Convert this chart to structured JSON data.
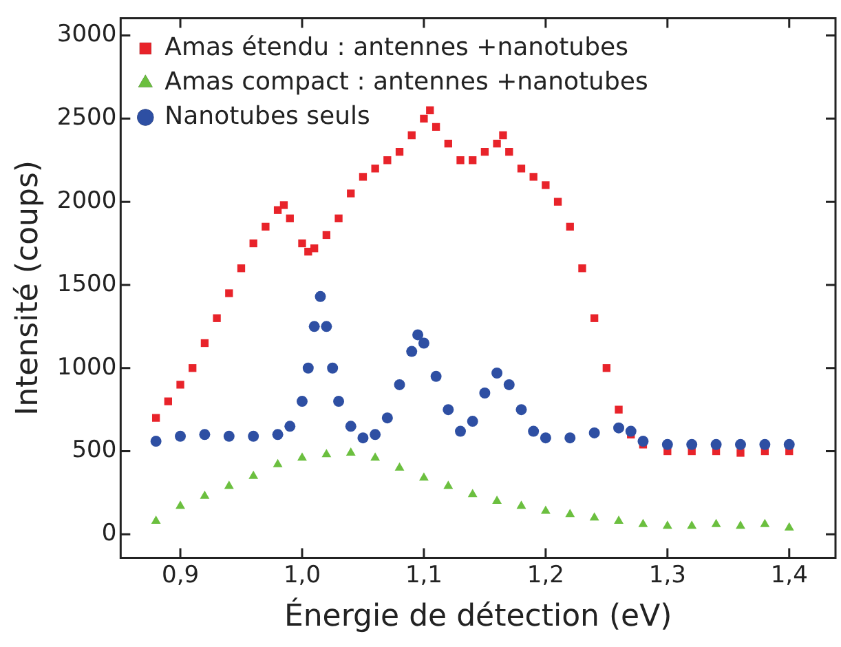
{
  "chart_data": {
    "type": "scatter",
    "xlabel": "Énergie de détection (eV)",
    "ylabel": "Intensité (coups)",
    "xlim": [
      0.851,
      1.438
    ],
    "ylim": [
      -141,
      3104
    ],
    "xticks": [
      {
        "value": 0.9,
        "label": "0,9"
      },
      {
        "value": 1.0,
        "label": "1,0"
      },
      {
        "value": 1.1,
        "label": "1,1"
      },
      {
        "value": 1.2,
        "label": "1,2"
      },
      {
        "value": 1.3,
        "label": "1,3"
      },
      {
        "value": 1.4,
        "label": "1,4"
      }
    ],
    "yticks": [
      0,
      500,
      1000,
      1500,
      2000,
      2500,
      3000
    ],
    "grid": false,
    "legend": "top left",
    "series": [
      {
        "name": "Amas étendu : antennes +nanotubes",
        "color": "#e8232a",
        "marker": "square",
        "x": [
          0.88,
          0.89,
          0.9,
          0.91,
          0.92,
          0.93,
          0.94,
          0.95,
          0.96,
          0.97,
          0.98,
          0.985,
          0.99,
          1.0,
          1.005,
          1.01,
          1.02,
          1.03,
          1.04,
          1.05,
          1.06,
          1.07,
          1.08,
          1.09,
          1.1,
          1.105,
          1.11,
          1.12,
          1.13,
          1.14,
          1.15,
          1.16,
          1.165,
          1.17,
          1.18,
          1.19,
          1.2,
          1.21,
          1.22,
          1.23,
          1.24,
          1.25,
          1.26,
          1.27,
          1.28,
          1.3,
          1.32,
          1.34,
          1.36,
          1.38,
          1.4
        ],
        "values": [
          700,
          800,
          900,
          1000,
          1150,
          1300,
          1450,
          1600,
          1750,
          1850,
          1950,
          1980,
          1900,
          1750,
          1700,
          1720,
          1800,
          1900,
          2050,
          2150,
          2200,
          2250,
          2300,
          2400,
          2500,
          2550,
          2450,
          2350,
          2250,
          2250,
          2300,
          2350,
          2400,
          2300,
          2200,
          2150,
          2100,
          2000,
          1850,
          1600,
          1300,
          1000,
          750,
          600,
          540,
          500,
          500,
          500,
          490,
          500,
          500
        ]
      },
      {
        "name": "Amas compact : antennes +nanotubes",
        "color": "#6bbf3f",
        "marker": "triangle",
        "x": [
          0.88,
          0.9,
          0.92,
          0.94,
          0.96,
          0.98,
          1.0,
          1.02,
          1.04,
          1.06,
          1.08,
          1.1,
          1.12,
          1.14,
          1.16,
          1.18,
          1.2,
          1.22,
          1.24,
          1.26,
          1.28,
          1.3,
          1.32,
          1.34,
          1.36,
          1.38,
          1.4
        ],
        "values": [
          80,
          170,
          230,
          290,
          350,
          420,
          460,
          480,
          490,
          460,
          400,
          340,
          290,
          240,
          200,
          170,
          140,
          120,
          100,
          80,
          60,
          50,
          50,
          60,
          50,
          60,
          40
        ]
      },
      {
        "name": "Nanotubes seuls",
        "color": "#2e4fa3",
        "marker": "circle",
        "x": [
          0.88,
          0.9,
          0.92,
          0.94,
          0.96,
          0.98,
          0.99,
          1.0,
          1.005,
          1.01,
          1.015,
          1.02,
          1.025,
          1.03,
          1.04,
          1.05,
          1.06,
          1.07,
          1.08,
          1.09,
          1.095,
          1.1,
          1.11,
          1.12,
          1.13,
          1.14,
          1.15,
          1.16,
          1.17,
          1.18,
          1.19,
          1.2,
          1.22,
          1.24,
          1.26,
          1.27,
          1.28,
          1.3,
          1.32,
          1.34,
          1.36,
          1.38,
          1.4
        ],
        "values": [
          560,
          590,
          600,
          590,
          590,
          600,
          650,
          800,
          1000,
          1250,
          1430,
          1250,
          1000,
          800,
          650,
          580,
          600,
          700,
          900,
          1100,
          1200,
          1150,
          950,
          750,
          620,
          680,
          850,
          970,
          900,
          750,
          620,
          580,
          580,
          610,
          640,
          620,
          560,
          540,
          540,
          540,
          540,
          540,
          540
        ]
      }
    ]
  }
}
